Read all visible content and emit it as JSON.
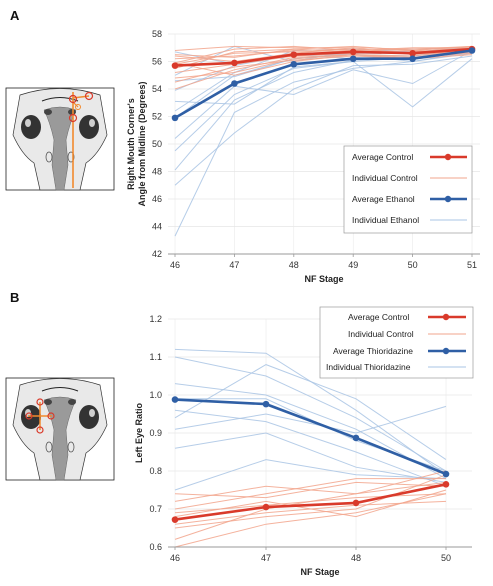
{
  "panels": {
    "a": {
      "label": "A"
    },
    "b": {
      "label": "B"
    }
  },
  "colors": {
    "control": "#d93a2b",
    "control_light": "#f2a48c",
    "treatment": "#2f5fa5",
    "treatment_light": "#a9c4e4",
    "grid": "#e6e6e6",
    "axis": "#999999"
  },
  "chart_data": [
    {
      "type": "line",
      "title": "",
      "xlabel": "NF Stage",
      "ylabel_line1": "Right Mouth Corner's",
      "ylabel_line2": "Angle from Midline (Degrees)",
      "x": [
        46,
        47,
        48,
        49,
        50,
        51
      ],
      "x_tick_labels": [
        "46",
        "47",
        "48",
        "49",
        "50",
        "51"
      ],
      "ylim": [
        42,
        58
      ],
      "y_ticks": [
        42,
        44,
        46,
        48,
        50,
        52,
        54,
        56,
        58
      ],
      "grid": true,
      "legend_position": "right",
      "legend": [
        "Average Control",
        "Individual Control",
        "Average Ethanol",
        "Individual Ethanol"
      ],
      "series": [
        {
          "name": "Average Control",
          "role": "avg-control",
          "values": [
            55.7,
            55.9,
            56.5,
            56.7,
            56.6,
            56.9
          ]
        },
        {
          "name": "Average Ethanol",
          "role": "avg-treatment",
          "values": [
            51.9,
            54.4,
            55.8,
            56.2,
            56.2,
            56.8
          ]
        }
      ],
      "individual_control": [
        [
          56.8,
          57.1,
          57.0,
          57.0,
          56.9,
          57.1
        ],
        [
          56.2,
          56.4,
          56.8,
          56.9,
          56.6,
          56.9
        ],
        [
          55.5,
          56.7,
          56.9,
          56.7,
          56.8,
          56.7
        ],
        [
          54.8,
          55.2,
          56.2,
          56.5,
          56.3,
          56.6
        ],
        [
          55.9,
          56.9,
          57.1,
          56.8,
          57.0,
          57.0
        ],
        [
          54.5,
          55.6,
          56.1,
          56.4,
          56.2,
          56.7
        ],
        [
          56.4,
          56.0,
          56.6,
          57.0,
          56.5,
          56.8
        ],
        [
          55.2,
          55.8,
          56.4,
          56.6,
          56.7,
          57.0
        ],
        [
          55.9,
          55.0,
          56.0,
          56.5,
          56.2,
          56.5
        ],
        [
          56.5,
          56.3,
          56.9,
          57.1,
          56.8,
          57.1
        ],
        [
          54.0,
          55.4,
          56.3,
          56.5,
          56.4,
          56.8
        ],
        [
          55.8,
          56.6,
          56.7,
          56.8,
          56.9,
          56.9
        ]
      ],
      "individual_ethanol": [
        [
          43.3,
          52.3,
          54.5,
          55.5,
          56.0,
          56.6
        ],
        [
          47.0,
          50.8,
          54.0,
          55.7,
          55.8,
          56.4
        ],
        [
          49.5,
          53.6,
          55.5,
          56.0,
          56.3,
          56.8
        ],
        [
          51.9,
          55.0,
          56.2,
          56.5,
          56.4,
          56.9
        ],
        [
          53.9,
          55.7,
          56.5,
          56.5,
          56.0,
          56.7
        ],
        [
          55.0,
          57.1,
          56.0,
          56.8,
          56.9,
          57.0
        ],
        [
          56.7,
          55.8,
          56.5,
          56.2,
          56.3,
          56.7
        ],
        [
          53.1,
          52.9,
          55.6,
          56.0,
          52.7,
          56.2
        ],
        [
          50.4,
          54.2,
          53.6,
          55.4,
          54.4,
          56.8
        ],
        [
          52.4,
          55.2,
          56.8,
          56.9,
          56.7,
          57.0
        ],
        [
          48.1,
          53.2,
          55.2,
          56.1,
          56.2,
          56.9
        ],
        [
          54.6,
          54.9,
          56.2,
          56.6,
          56.6,
          56.8
        ]
      ]
    },
    {
      "type": "line",
      "title": "",
      "xlabel": "NF Stage",
      "ylabel": "Left Eye Ratio",
      "x": [
        46,
        47,
        48,
        50
      ],
      "x_tick_labels": [
        "46",
        "47",
        "48",
        "50"
      ],
      "ylim": [
        0.6,
        1.2
      ],
      "y_ticks": [
        0.6,
        0.7,
        0.8,
        0.9,
        1.0,
        1.1,
        1.2
      ],
      "y_tick_labels": [
        "0.6",
        "0.7",
        "0.8",
        "0.9",
        "1.0",
        "1.1",
        "1.2"
      ],
      "grid": true,
      "legend_position": "top-right",
      "legend": [
        "Average Control",
        "Individual Control",
        "Average Thioridazine",
        "Individual Thioridazine"
      ],
      "series": [
        {
          "name": "Average Control",
          "role": "avg-control",
          "values": [
            0.672,
            0.705,
            0.716,
            0.765
          ]
        },
        {
          "name": "Average Thioridazine",
          "role": "avg-treatment",
          "values": [
            0.988,
            0.976,
            0.887,
            0.792
          ]
        }
      ],
      "individual_control": [
        [
          0.6,
          0.66,
          0.69,
          0.74
        ],
        [
          0.62,
          0.7,
          0.74,
          0.77
        ],
        [
          0.65,
          0.68,
          0.7,
          0.79
        ],
        [
          0.68,
          0.72,
          0.68,
          0.75
        ],
        [
          0.7,
          0.74,
          0.78,
          0.78
        ],
        [
          0.72,
          0.76,
          0.74,
          0.8
        ],
        [
          0.66,
          0.69,
          0.71,
          0.72
        ],
        [
          0.74,
          0.73,
          0.77,
          0.76
        ],
        [
          0.69,
          0.71,
          0.73,
          0.74
        ]
      ],
      "individual_thioridazine": [
        [
          1.12,
          1.11,
          0.96,
          0.79
        ],
        [
          1.1,
          1.05,
          0.94,
          0.8
        ],
        [
          1.03,
          1.0,
          0.91,
          0.78
        ],
        [
          0.99,
          0.99,
          0.88,
          0.8
        ],
        [
          0.96,
          0.93,
          0.85,
          0.76
        ],
        [
          0.91,
          0.95,
          0.9,
          0.97
        ],
        [
          0.86,
          0.9,
          0.81,
          0.77
        ],
        [
          0.94,
          1.08,
          0.99,
          0.83
        ],
        [
          0.75,
          0.83,
          0.79,
          0.78
        ]
      ]
    }
  ]
}
